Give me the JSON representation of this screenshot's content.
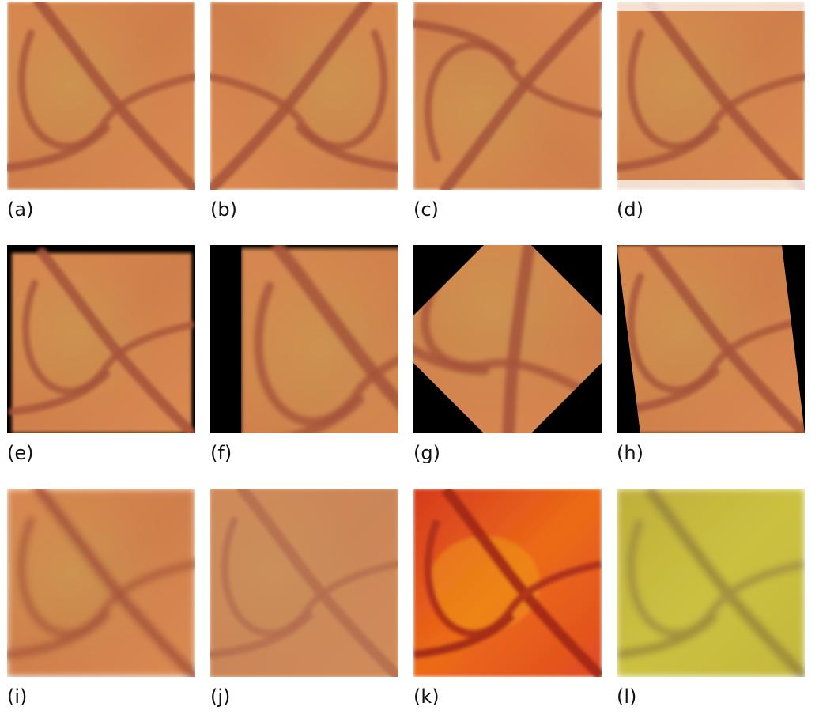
{
  "panels": [
    {
      "label": "(a)",
      "variant": "original"
    },
    {
      "label": "(b)",
      "variant": "flip-horizontal"
    },
    {
      "label": "(c)",
      "variant": "flip-vertical"
    },
    {
      "label": "(d)",
      "variant": "edge-blur"
    },
    {
      "label": "(e)",
      "variant": "padded-shrink"
    },
    {
      "label": "(f)",
      "variant": "translate"
    },
    {
      "label": "(g)",
      "variant": "rotate-45"
    },
    {
      "label": "(h)",
      "variant": "shear"
    },
    {
      "label": "(i)",
      "variant": "blur"
    },
    {
      "label": "(j)",
      "variant": "noise"
    },
    {
      "label": "(k)",
      "variant": "saturation-boost"
    },
    {
      "label": "(l)",
      "variant": "hue-shift-yellow"
    }
  ],
  "colors": {
    "fundus_base": "#d9824d",
    "vessel": "#a5523a",
    "yellow_tint": "#c9bf3f",
    "saturated": "#e8601e",
    "background_pad": "#000000"
  }
}
